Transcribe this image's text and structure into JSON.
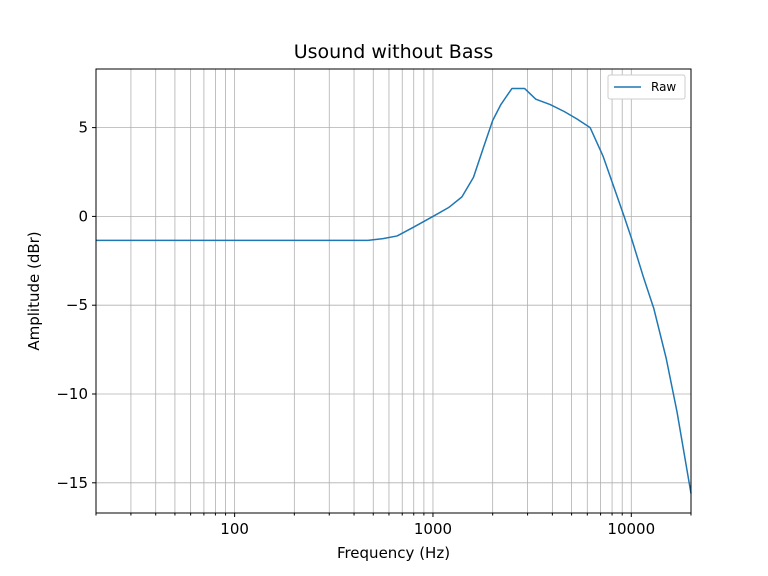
{
  "chart_data": {
    "type": "line",
    "title": "Usound without Bass",
    "xlabel": "Frequency (Hz)",
    "ylabel": "Amplitude (dBr)",
    "xscale": "log",
    "xlim": [
      20,
      20000
    ],
    "ylim": [
      -16.7,
      8.3
    ],
    "x_ticks": [
      100,
      1000,
      10000
    ],
    "x_tick_labels": [
      "100",
      "1000",
      "10000"
    ],
    "y_ticks": [
      5,
      0,
      -5,
      -10,
      -15
    ],
    "y_tick_labels": [
      "5",
      "0",
      "−5",
      "−10",
      "−15"
    ],
    "grid": true,
    "legend_position": "top-right",
    "series": [
      {
        "name": "Raw",
        "color": "#1f77b4",
        "x": [
          20,
          100,
          300,
          470,
          560,
          660,
          800,
          1000,
          1200,
          1400,
          1600,
          1800,
          2000,
          2200,
          2500,
          2900,
          3300,
          3900,
          4600,
          5300,
          6200,
          7200,
          8200,
          9200,
          10000,
          11500,
          13000,
          15000,
          17000,
          20000
        ],
        "values": [
          -1.35,
          -1.35,
          -1.35,
          -1.35,
          -1.25,
          -1.1,
          -0.6,
          0.0,
          0.5,
          1.1,
          2.2,
          3.9,
          5.4,
          6.3,
          7.2,
          7.2,
          6.6,
          6.3,
          5.9,
          5.5,
          5.0,
          3.4,
          1.6,
          0.0,
          -1.2,
          -3.4,
          -5.2,
          -8.0,
          -11.0,
          -15.6
        ]
      }
    ]
  }
}
